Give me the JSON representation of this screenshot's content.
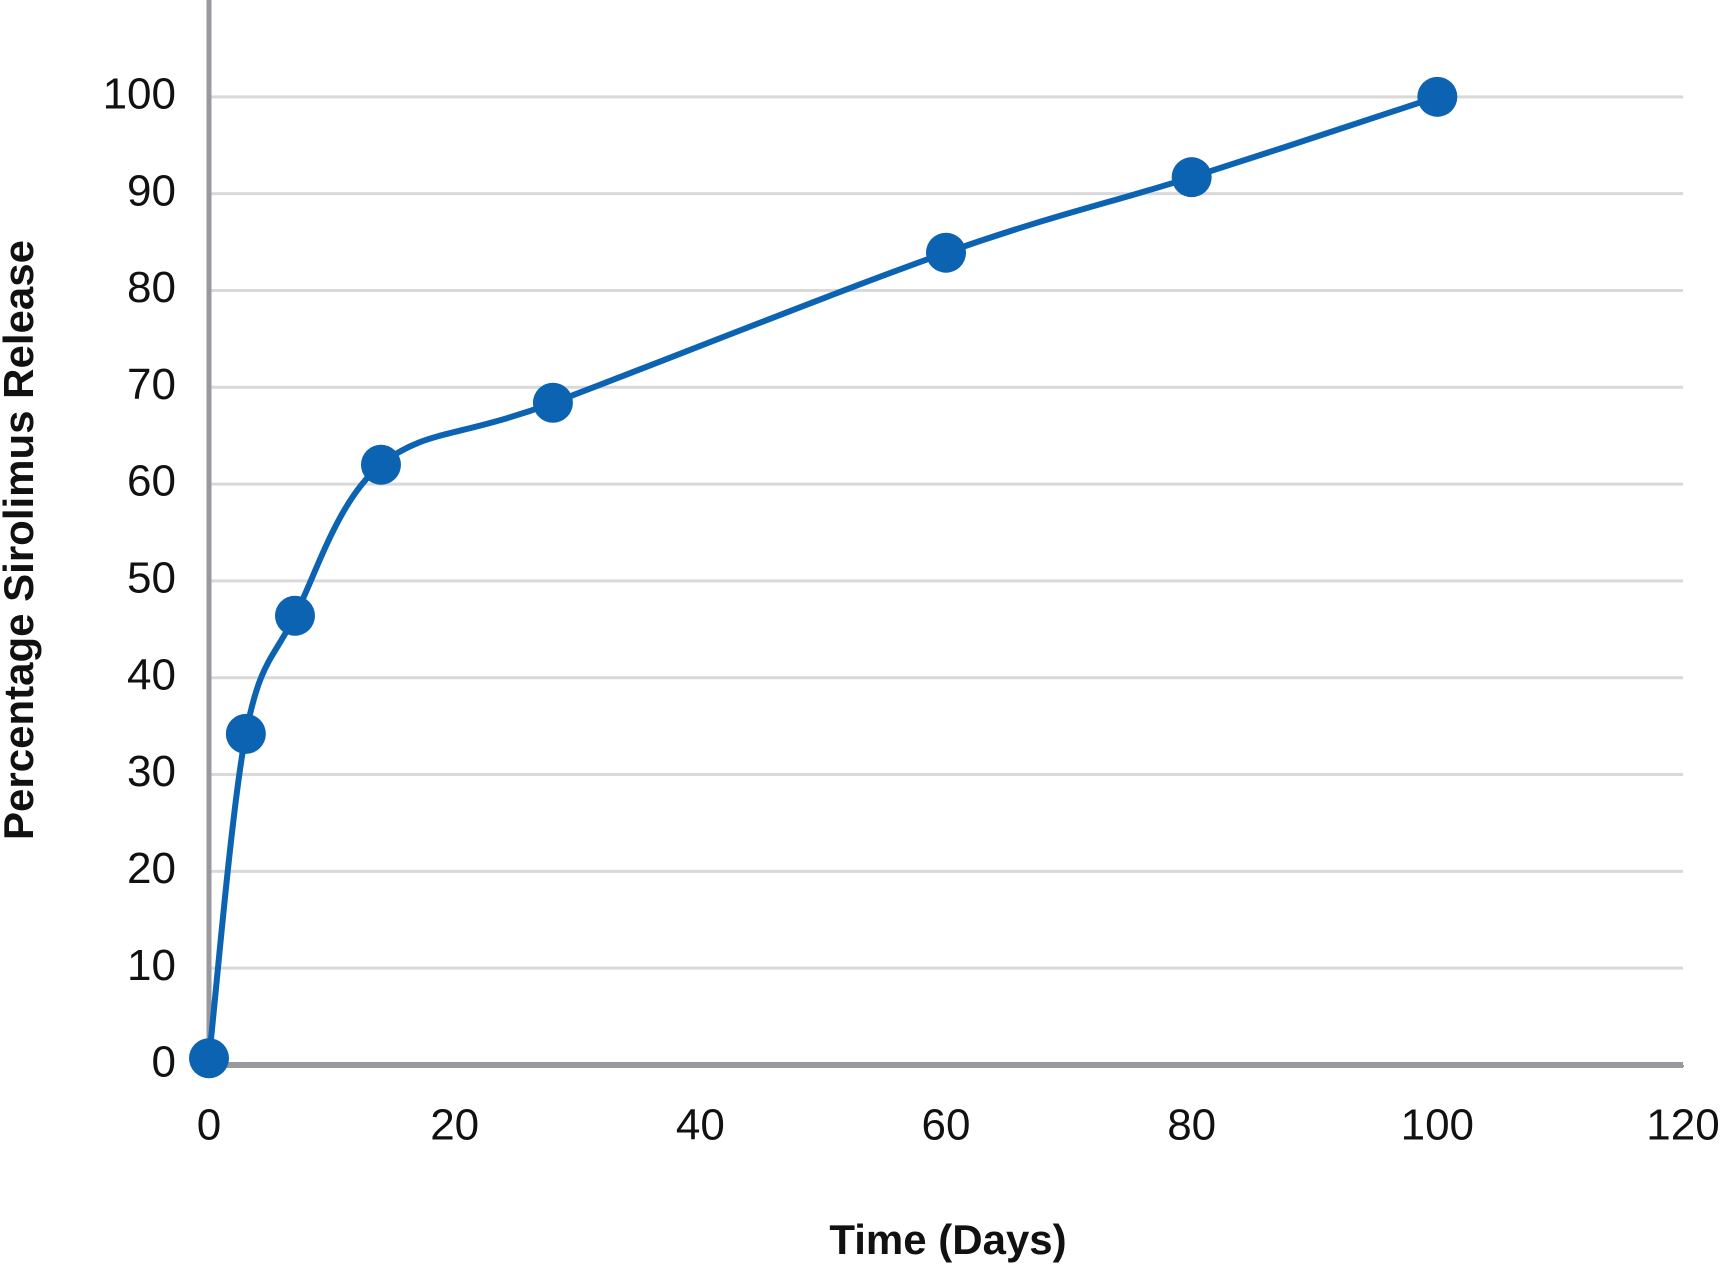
{
  "chart_data": {
    "type": "line",
    "x_label": "Time (Days)",
    "y_label": "Percentage Sirolimus Release",
    "x": [
      0,
      3,
      7,
      14,
      28,
      60,
      80,
      100
    ],
    "values": [
      0.7,
      34.2,
      46.4,
      62,
      68.4,
      83.9,
      91.7,
      100
    ],
    "color": "#0b63b2",
    "smooth": true,
    "xlim": [
      0,
      120
    ],
    "xticks": [
      0,
      20,
      40,
      60,
      80,
      100,
      120
    ],
    "ylim": [
      0,
      110
    ],
    "yticks": [
      0,
      10,
      20,
      30,
      40,
      50,
      60,
      70,
      80,
      90,
      100
    ],
    "grid": true
  }
}
